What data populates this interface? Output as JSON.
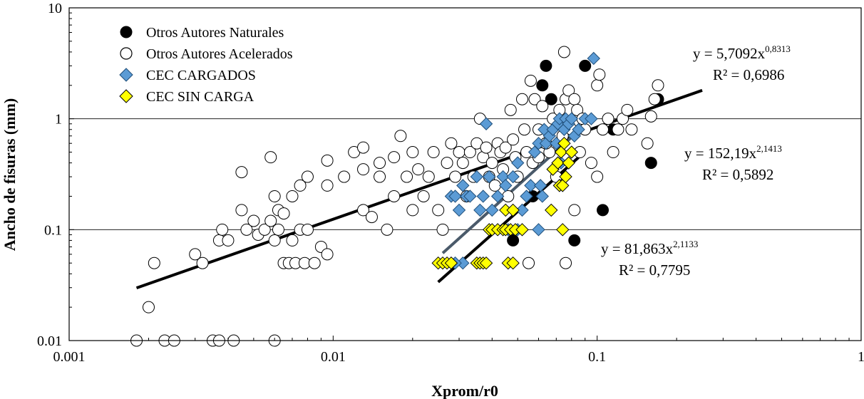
{
  "chart_data": {
    "type": "scatter",
    "title": "",
    "xlabel": "Xprom/r0",
    "ylabel": "Ancho de fisuras (mm)",
    "xscale": "log",
    "yscale": "log",
    "xlim": [
      0.001,
      1
    ],
    "ylim": [
      0.01,
      10
    ],
    "x_ticks": [
      "0.001",
      "0.01",
      "0.1",
      "1"
    ],
    "y_ticks": [
      "0.01",
      "0.1",
      "1",
      "10"
    ],
    "grid": "horizontal major",
    "legend_position": "top-left",
    "series": [
      {
        "name": "Otros Autores Naturales",
        "marker": "circle",
        "fill": "#000000",
        "stroke": "#000000",
        "points": [
          [
            0.062,
            2.0
          ],
          [
            0.064,
            3.0
          ],
          [
            0.09,
            3.0
          ],
          [
            0.067,
            1.5
          ],
          [
            0.115,
            0.8
          ],
          [
            0.17,
            1.5
          ],
          [
            0.16,
            0.4
          ],
          [
            0.105,
            0.15
          ],
          [
            0.082,
            0.08
          ],
          [
            0.048,
            0.08
          ],
          [
            0.057,
            0.2
          ]
        ]
      },
      {
        "name": "Otros Autores Acelerados",
        "marker": "circle",
        "fill": "#ffffff",
        "stroke": "#000000",
        "points": [
          [
            0.0018,
            0.01
          ],
          [
            0.0023,
            0.01
          ],
          [
            0.0025,
            0.01
          ],
          [
            0.0035,
            0.01
          ],
          [
            0.0037,
            0.01
          ],
          [
            0.0042,
            0.01
          ],
          [
            0.006,
            0.01
          ],
          [
            0.002,
            0.02
          ],
          [
            0.0021,
            0.05
          ],
          [
            0.003,
            0.06
          ],
          [
            0.0032,
            0.05
          ],
          [
            0.0037,
            0.08
          ],
          [
            0.0038,
            0.1
          ],
          [
            0.004,
            0.08
          ],
          [
            0.0045,
            0.15
          ],
          [
            0.0047,
            0.1
          ],
          [
            0.005,
            0.12
          ],
          [
            0.0052,
            0.09
          ],
          [
            0.0055,
            0.1
          ],
          [
            0.0058,
            0.12
          ],
          [
            0.006,
            0.08
          ],
          [
            0.0062,
            0.1
          ],
          [
            0.0065,
            0.05
          ],
          [
            0.0068,
            0.05
          ],
          [
            0.007,
            0.08
          ],
          [
            0.0072,
            0.05
          ],
          [
            0.0075,
            0.1
          ],
          [
            0.0078,
            0.05
          ],
          [
            0.008,
            0.1
          ],
          [
            0.0085,
            0.05
          ],
          [
            0.0045,
            0.33
          ],
          [
            0.0058,
            0.45
          ],
          [
            0.006,
            0.2
          ],
          [
            0.0062,
            0.15
          ],
          [
            0.0065,
            0.14
          ],
          [
            0.007,
            0.2
          ],
          [
            0.0075,
            0.25
          ],
          [
            0.008,
            0.3
          ],
          [
            0.009,
            0.07
          ],
          [
            0.0095,
            0.06
          ],
          [
            0.0095,
            0.25
          ],
          [
            0.0095,
            0.42
          ],
          [
            0.011,
            0.3
          ],
          [
            0.012,
            0.5
          ],
          [
            0.013,
            0.15
          ],
          [
            0.013,
            0.35
          ],
          [
            0.013,
            0.55
          ],
          [
            0.014,
            0.13
          ],
          [
            0.015,
            0.3
          ],
          [
            0.015,
            0.4
          ],
          [
            0.016,
            0.1
          ],
          [
            0.017,
            0.2
          ],
          [
            0.017,
            0.45
          ],
          [
            0.018,
            0.7
          ],
          [
            0.019,
            0.3
          ],
          [
            0.02,
            0.15
          ],
          [
            0.02,
            0.5
          ],
          [
            0.021,
            0.35
          ],
          [
            0.022,
            0.2
          ],
          [
            0.023,
            0.3
          ],
          [
            0.024,
            0.5
          ],
          [
            0.025,
            0.15
          ],
          [
            0.026,
            0.1
          ],
          [
            0.027,
            0.4
          ],
          [
            0.028,
            0.6
          ],
          [
            0.029,
            0.3
          ],
          [
            0.03,
            0.5
          ],
          [
            0.031,
            0.4
          ],
          [
            0.032,
            0.2
          ],
          [
            0.033,
            0.5
          ],
          [
            0.034,
            0.3
          ],
          [
            0.035,
            0.6
          ],
          [
            0.036,
            1.0
          ],
          [
            0.037,
            0.45
          ],
          [
            0.038,
            0.55
          ],
          [
            0.039,
            0.3
          ],
          [
            0.04,
            0.4
          ],
          [
            0.041,
            0.25
          ],
          [
            0.042,
            0.6
          ],
          [
            0.043,
            0.5
          ],
          [
            0.044,
            0.35
          ],
          [
            0.045,
            0.55
          ],
          [
            0.046,
            0.2
          ],
          [
            0.047,
            1.2
          ],
          [
            0.048,
            0.65
          ],
          [
            0.049,
            0.45
          ],
          [
            0.05,
            0.3
          ],
          [
            0.052,
            1.5
          ],
          [
            0.053,
            0.8
          ],
          [
            0.054,
            0.5
          ],
          [
            0.056,
            2.2
          ],
          [
            0.057,
            0.4
          ],
          [
            0.058,
            1.5
          ],
          [
            0.06,
            0.8
          ],
          [
            0.062,
            1.3
          ],
          [
            0.064,
            0.6
          ],
          [
            0.066,
            0.5
          ],
          [
            0.068,
            1.0
          ],
          [
            0.07,
            0.3
          ],
          [
            0.072,
            1.2
          ],
          [
            0.074,
            0.7
          ],
          [
            0.075,
            4.0
          ],
          [
            0.076,
            1.5
          ],
          [
            0.078,
            1.8
          ],
          [
            0.08,
            0.8
          ],
          [
            0.082,
            1.5
          ],
          [
            0.084,
            1.2
          ],
          [
            0.086,
            0.5
          ],
          [
            0.088,
            1.0
          ],
          [
            0.09,
            0.8
          ],
          [
            0.095,
            0.4
          ],
          [
            0.1,
            0.3
          ],
          [
            0.1,
            2.0
          ],
          [
            0.102,
            2.5
          ],
          [
            0.105,
            0.8
          ],
          [
            0.11,
            1.0
          ],
          [
            0.115,
            0.5
          ],
          [
            0.12,
            0.8
          ],
          [
            0.125,
            1.0
          ],
          [
            0.13,
            1.2
          ],
          [
            0.135,
            0.8
          ],
          [
            0.155,
            0.6
          ],
          [
            0.16,
            1.05
          ],
          [
            0.165,
            1.5
          ],
          [
            0.17,
            2.0
          ],
          [
            0.076,
            0.05
          ],
          [
            0.055,
            0.05
          ],
          [
            0.082,
            0.15
          ],
          [
            0.064,
            0.6
          ],
          [
            0.06,
            0.45
          ]
        ]
      },
      {
        "name": "CEC CARGADOS",
        "marker": "diamond",
        "fill": "#5b9bd5",
        "stroke": "#1f4e79",
        "points": [
          [
            0.028,
            0.2
          ],
          [
            0.029,
            0.2
          ],
          [
            0.03,
            0.15
          ],
          [
            0.031,
            0.25
          ],
          [
            0.032,
            0.2
          ],
          [
            0.033,
            0.2
          ],
          [
            0.035,
            0.3
          ],
          [
            0.036,
            0.15
          ],
          [
            0.037,
            0.2
          ],
          [
            0.038,
            0.9
          ],
          [
            0.039,
            0.3
          ],
          [
            0.04,
            0.15
          ],
          [
            0.042,
            0.2
          ],
          [
            0.044,
            0.3
          ],
          [
            0.045,
            0.25
          ],
          [
            0.046,
            0.1
          ],
          [
            0.048,
            0.3
          ],
          [
            0.05,
            0.4
          ],
          [
            0.052,
            0.15
          ],
          [
            0.054,
            0.2
          ],
          [
            0.056,
            0.25
          ],
          [
            0.058,
            0.5
          ],
          [
            0.06,
            0.6
          ],
          [
            0.061,
            0.25
          ],
          [
            0.062,
            0.2
          ],
          [
            0.063,
            0.8
          ],
          [
            0.064,
            0.6
          ],
          [
            0.066,
            0.7
          ],
          [
            0.068,
            0.8
          ],
          [
            0.07,
            0.6
          ],
          [
            0.071,
            0.9
          ],
          [
            0.072,
            1.0
          ],
          [
            0.073,
            0.4
          ],
          [
            0.075,
            0.8
          ],
          [
            0.076,
            1.0
          ],
          [
            0.078,
            0.9
          ],
          [
            0.08,
            1.0
          ],
          [
            0.082,
            0.7
          ],
          [
            0.085,
            0.8
          ],
          [
            0.09,
            1.0
          ],
          [
            0.095,
            1.0
          ],
          [
            0.097,
            3.5
          ],
          [
            0.031,
            0.05
          ],
          [
            0.029,
            0.05
          ],
          [
            0.06,
            0.1
          ],
          [
            0.05,
            0.1
          ]
        ]
      },
      {
        "name": "CEC SIN CARGA",
        "marker": "diamond",
        "fill": "#ffff00",
        "stroke": "#000000",
        "points": [
          [
            0.025,
            0.05
          ],
          [
            0.026,
            0.05
          ],
          [
            0.027,
            0.05
          ],
          [
            0.028,
            0.05
          ],
          [
            0.035,
            0.05
          ],
          [
            0.036,
            0.05
          ],
          [
            0.037,
            0.05
          ],
          [
            0.038,
            0.05
          ],
          [
            0.046,
            0.05
          ],
          [
            0.048,
            0.05
          ],
          [
            0.039,
            0.1
          ],
          [
            0.04,
            0.1
          ],
          [
            0.042,
            0.1
          ],
          [
            0.044,
            0.1
          ],
          [
            0.045,
            0.1
          ],
          [
            0.047,
            0.1
          ],
          [
            0.049,
            0.1
          ],
          [
            0.052,
            0.1
          ],
          [
            0.045,
            0.15
          ],
          [
            0.048,
            0.15
          ],
          [
            0.067,
            0.15
          ],
          [
            0.072,
            0.25
          ],
          [
            0.074,
            0.25
          ],
          [
            0.076,
            0.3
          ],
          [
            0.068,
            0.35
          ],
          [
            0.071,
            0.4
          ],
          [
            0.073,
            0.5
          ],
          [
            0.075,
            0.6
          ],
          [
            0.078,
            0.4
          ],
          [
            0.08,
            0.5
          ],
          [
            0.074,
            0.1
          ]
        ]
      }
    ],
    "trendlines": [
      {
        "equation": "y = 5,7092x",
        "exponent": "0,8313",
        "r2": "R² = 0,6986",
        "coef": 5.7092,
        "power": 0.8313,
        "x_range": [
          0.0018,
          0.25
        ],
        "color": "#000000"
      },
      {
        "equation": "y = 152,19x",
        "exponent": "2,1413",
        "r2": "R² = 0,5892",
        "coef": 152.19,
        "power": 2.1413,
        "x_range": [
          0.026,
          0.09
        ],
        "color": "#4a5a6a"
      },
      {
        "equation": "y = 81,863x",
        "exponent": "2,1133",
        "r2": "R² = 0,7795",
        "coef": 81.863,
        "power": 2.1133,
        "x_range": [
          0.025,
          0.085
        ],
        "color": "#000000"
      }
    ]
  }
}
